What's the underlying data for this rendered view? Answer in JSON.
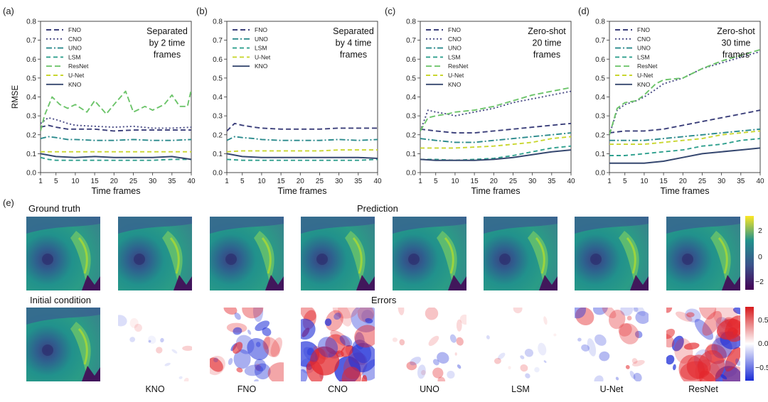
{
  "panel_tags": [
    "(a)",
    "(b)",
    "(c)",
    "(d)",
    "(e)"
  ],
  "chart_data": [
    {
      "type": "line",
      "tag": "(a)",
      "note": "Separated\nby 2 time\nframes",
      "xlabel": "Time frames",
      "ylabel": "RMSE",
      "xlim": [
        1,
        40
      ],
      "ylim": [
        0,
        0.8
      ],
      "xticks": [
        1,
        5,
        10,
        15,
        20,
        25,
        30,
        35,
        40
      ],
      "yticks": [
        0,
        0.1,
        0.2,
        0.3,
        0.4,
        0.5,
        0.6,
        0.7,
        0.8
      ],
      "legend_position": "upper-left",
      "series": [
        {
          "name": "FNO",
          "color": "#3b3f7a",
          "dash": "7,4",
          "x": [
            1,
            3,
            5,
            8,
            10,
            15,
            20,
            25,
            30,
            35,
            40
          ],
          "values": [
            0.24,
            0.25,
            0.24,
            0.23,
            0.23,
            0.23,
            0.22,
            0.225,
            0.225,
            0.225,
            0.225
          ]
        },
        {
          "name": "CNO",
          "color": "#4a4c86",
          "dash": "2,3",
          "x": [
            1,
            3,
            5,
            8,
            10,
            15,
            20,
            25,
            30,
            35,
            40
          ],
          "values": [
            0.26,
            0.29,
            0.28,
            0.26,
            0.25,
            0.245,
            0.24,
            0.245,
            0.235,
            0.235,
            0.24
          ]
        },
        {
          "name": "UNO",
          "color": "#2a8a8c",
          "dash": "8,3,2,3",
          "x": [
            1,
            3,
            5,
            8,
            10,
            15,
            20,
            25,
            30,
            35,
            40
          ],
          "values": [
            0.18,
            0.19,
            0.185,
            0.175,
            0.175,
            0.17,
            0.17,
            0.175,
            0.17,
            0.17,
            0.175
          ]
        },
        {
          "name": "LSM",
          "color": "#2fa08e",
          "dash": "6,4",
          "x": [
            1,
            3,
            5,
            8,
            10,
            15,
            20,
            25,
            30,
            35,
            40
          ],
          "values": [
            0.08,
            0.07,
            0.065,
            0.065,
            0.065,
            0.065,
            0.065,
            0.065,
            0.065,
            0.07,
            0.07
          ]
        },
        {
          "name": "ResNet",
          "color": "#6cc46a",
          "dash": "8,4",
          "x": [
            1,
            2,
            4,
            6,
            8,
            10,
            13,
            15,
            18,
            20,
            23,
            25,
            28,
            30,
            33,
            35,
            37,
            39,
            40
          ],
          "values": [
            0.22,
            0.3,
            0.4,
            0.36,
            0.34,
            0.36,
            0.32,
            0.38,
            0.31,
            0.36,
            0.43,
            0.32,
            0.35,
            0.33,
            0.36,
            0.41,
            0.35,
            0.35,
            0.44
          ]
        },
        {
          "name": "U-Net",
          "color": "#c9d630",
          "dash": "6,4",
          "x": [
            1,
            5,
            10,
            15,
            20,
            25,
            30,
            35,
            40
          ],
          "values": [
            0.11,
            0.11,
            0.11,
            0.11,
            0.11,
            0.11,
            0.11,
            0.11,
            0.11
          ]
        },
        {
          "name": "KNO",
          "color": "#35476f",
          "dash": "",
          "x": [
            1,
            5,
            10,
            15,
            20,
            25,
            30,
            35,
            40
          ],
          "values": [
            0.1,
            0.085,
            0.08,
            0.085,
            0.08,
            0.08,
            0.08,
            0.085,
            0.07
          ]
        }
      ]
    },
    {
      "type": "line",
      "tag": "(b)",
      "note": "Separated\nby 4 time\nframes",
      "xlabel": "Time frames",
      "ylabel": "",
      "xlim": [
        1,
        40
      ],
      "ylim": [
        0,
        0.8
      ],
      "xticks": [
        1,
        5,
        10,
        15,
        20,
        25,
        30,
        35,
        40
      ],
      "yticks": [
        0,
        0.1,
        0.2,
        0.3,
        0.4,
        0.5,
        0.6,
        0.7,
        0.8
      ],
      "legend_position": "upper-left",
      "series": [
        {
          "name": "FNO",
          "color": "#3b3f7a",
          "dash": "7,4",
          "x": [
            1,
            3,
            5,
            8,
            10,
            15,
            20,
            25,
            30,
            35,
            40
          ],
          "values": [
            0.22,
            0.26,
            0.25,
            0.24,
            0.235,
            0.23,
            0.23,
            0.23,
            0.235,
            0.235,
            0.235
          ]
        },
        {
          "name": "UNO",
          "color": "#2a8a8c",
          "dash": "8,3,2,3",
          "x": [
            1,
            3,
            5,
            8,
            10,
            15,
            20,
            25,
            30,
            35,
            40
          ],
          "values": [
            0.17,
            0.19,
            0.185,
            0.18,
            0.175,
            0.17,
            0.17,
            0.17,
            0.175,
            0.17,
            0.175
          ]
        },
        {
          "name": "LSM",
          "color": "#2fa08e",
          "dash": "6,4",
          "x": [
            1,
            5,
            10,
            15,
            20,
            25,
            30,
            35,
            40
          ],
          "values": [
            0.07,
            0.065,
            0.065,
            0.065,
            0.065,
            0.065,
            0.065,
            0.065,
            0.07
          ]
        },
        {
          "name": "U-Net",
          "color": "#c9d630",
          "dash": "6,4",
          "x": [
            1,
            5,
            10,
            15,
            20,
            25,
            30,
            35,
            40
          ],
          "values": [
            0.11,
            0.115,
            0.115,
            0.115,
            0.115,
            0.115,
            0.12,
            0.12,
            0.12
          ]
        },
        {
          "name": "KNO",
          "color": "#35476f",
          "dash": "",
          "x": [
            1,
            5,
            10,
            15,
            20,
            25,
            30,
            35,
            40
          ],
          "values": [
            0.1,
            0.085,
            0.08,
            0.08,
            0.08,
            0.08,
            0.08,
            0.08,
            0.075
          ]
        }
      ]
    },
    {
      "type": "line",
      "tag": "(c)",
      "note": "Zero-shot\n20 time\nframes",
      "xlabel": "Time frames",
      "ylabel": "",
      "xlim": [
        1,
        40
      ],
      "ylim": [
        0,
        0.8
      ],
      "xticks": [
        1,
        5,
        10,
        15,
        20,
        25,
        30,
        35,
        40
      ],
      "yticks": [
        0,
        0.1,
        0.2,
        0.3,
        0.4,
        0.5,
        0.6,
        0.7,
        0.8
      ],
      "legend_position": "upper-left",
      "series": [
        {
          "name": "FNO",
          "color": "#3b3f7a",
          "dash": "7,4",
          "x": [
            1,
            5,
            10,
            15,
            20,
            25,
            30,
            35,
            40
          ],
          "values": [
            0.23,
            0.22,
            0.21,
            0.21,
            0.22,
            0.23,
            0.24,
            0.25,
            0.26
          ]
        },
        {
          "name": "CNO",
          "color": "#4a4c86",
          "dash": "2,3",
          "x": [
            1,
            3,
            5,
            8,
            10,
            15,
            20,
            25,
            30,
            35,
            40
          ],
          "values": [
            0.22,
            0.33,
            0.32,
            0.31,
            0.3,
            0.32,
            0.34,
            0.37,
            0.39,
            0.41,
            0.43
          ]
        },
        {
          "name": "UNO",
          "color": "#2a8a8c",
          "dash": "8,3,2,3",
          "x": [
            1,
            5,
            10,
            15,
            20,
            25,
            30,
            35,
            40
          ],
          "values": [
            0.18,
            0.17,
            0.16,
            0.16,
            0.17,
            0.18,
            0.19,
            0.2,
            0.21
          ]
        },
        {
          "name": "LSM",
          "color": "#2fa08e",
          "dash": "6,4",
          "x": [
            1,
            5,
            10,
            15,
            20,
            25,
            30,
            35,
            40
          ],
          "values": [
            0.07,
            0.07,
            0.065,
            0.07,
            0.075,
            0.09,
            0.11,
            0.13,
            0.14
          ]
        },
        {
          "name": "ResNet",
          "color": "#6cc46a",
          "dash": "8,4",
          "x": [
            1,
            3,
            5,
            8,
            10,
            15,
            20,
            25,
            30,
            35,
            40
          ],
          "values": [
            0.22,
            0.29,
            0.3,
            0.31,
            0.32,
            0.33,
            0.35,
            0.38,
            0.41,
            0.43,
            0.45
          ]
        },
        {
          "name": "U-Net",
          "color": "#c9d630",
          "dash": "6,4",
          "x": [
            1,
            5,
            10,
            15,
            20,
            25,
            30,
            35,
            40
          ],
          "values": [
            0.13,
            0.13,
            0.13,
            0.135,
            0.14,
            0.15,
            0.16,
            0.18,
            0.19
          ]
        },
        {
          "name": "KNO",
          "color": "#35476f",
          "dash": "",
          "x": [
            1,
            5,
            10,
            15,
            20,
            25,
            30,
            35,
            40
          ],
          "values": [
            0.07,
            0.065,
            0.065,
            0.065,
            0.07,
            0.08,
            0.095,
            0.11,
            0.12
          ]
        }
      ]
    },
    {
      "type": "line",
      "tag": "(d)",
      "note": "Zero-shot\n30 time\nframes",
      "xlabel": "Time frames",
      "ylabel": "",
      "xlim": [
        1,
        40
      ],
      "ylim": [
        0,
        0.8
      ],
      "xticks": [
        1,
        5,
        10,
        15,
        20,
        25,
        30,
        35,
        40
      ],
      "yticks": [
        0,
        0.1,
        0.2,
        0.3,
        0.4,
        0.5,
        0.6,
        0.7,
        0.8
      ],
      "legend_position": "upper-left",
      "series": [
        {
          "name": "FNO",
          "color": "#3b3f7a",
          "dash": "7,4",
          "x": [
            1,
            5,
            10,
            15,
            20,
            25,
            30,
            35,
            40
          ],
          "values": [
            0.21,
            0.22,
            0.22,
            0.23,
            0.25,
            0.27,
            0.29,
            0.31,
            0.33
          ]
        },
        {
          "name": "CNO",
          "color": "#4a4c86",
          "dash": "2,3",
          "x": [
            1,
            3,
            5,
            8,
            10,
            13,
            15,
            20,
            25,
            30,
            35,
            40
          ],
          "values": [
            0.2,
            0.33,
            0.36,
            0.38,
            0.4,
            0.44,
            0.47,
            0.5,
            0.55,
            0.58,
            0.61,
            0.64
          ]
        },
        {
          "name": "UNO",
          "color": "#2a8a8c",
          "dash": "8,3,2,3",
          "x": [
            1,
            5,
            10,
            15,
            20,
            25,
            30,
            35,
            40
          ],
          "values": [
            0.17,
            0.17,
            0.17,
            0.18,
            0.19,
            0.2,
            0.21,
            0.22,
            0.23
          ]
        },
        {
          "name": "LSM",
          "color": "#2fa08e",
          "dash": "6,4",
          "x": [
            1,
            5,
            10,
            15,
            20,
            25,
            30,
            35,
            40
          ],
          "values": [
            0.09,
            0.09,
            0.1,
            0.11,
            0.12,
            0.14,
            0.15,
            0.17,
            0.18
          ]
        },
        {
          "name": "ResNet",
          "color": "#6cc46a",
          "dash": "8,4",
          "x": [
            1,
            3,
            5,
            8,
            10,
            13,
            15,
            20,
            25,
            30,
            35,
            40
          ],
          "values": [
            0.2,
            0.34,
            0.37,
            0.38,
            0.41,
            0.47,
            0.49,
            0.5,
            0.55,
            0.59,
            0.62,
            0.65
          ]
        },
        {
          "name": "U-Net",
          "color": "#c9d630",
          "dash": "6,4",
          "x": [
            1,
            5,
            10,
            15,
            20,
            25,
            30,
            35,
            40
          ],
          "values": [
            0.15,
            0.15,
            0.15,
            0.16,
            0.17,
            0.18,
            0.2,
            0.21,
            0.22
          ]
        },
        {
          "name": "KNO",
          "color": "#35476f",
          "dash": "",
          "x": [
            1,
            5,
            10,
            15,
            20,
            25,
            30,
            35,
            40
          ],
          "values": [
            0.05,
            0.05,
            0.05,
            0.06,
            0.08,
            0.1,
            0.11,
            0.12,
            0.13
          ]
        }
      ]
    }
  ],
  "panel_e": {
    "tag": "(e)",
    "ground_truth_label": "Ground truth",
    "initial_condition_label": "Initial condition",
    "prediction_label": "Prediction",
    "errors_label": "Errors",
    "models": [
      "KNO",
      "FNO",
      "CNO",
      "UNO",
      "LSM",
      "U-Net",
      "ResNet"
    ],
    "error_intensity": [
      0.08,
      0.55,
      0.95,
      0.3,
      0.12,
      0.45,
      1.0
    ],
    "prediction_colorbar": {
      "ticks": [
        "2",
        "0",
        "−2"
      ],
      "colors": [
        "#fde725",
        "#21918c",
        "#3b528b",
        "#440154"
      ]
    },
    "error_colorbar": {
      "ticks": [
        "0.5",
        "0.0",
        "−0.5"
      ],
      "colors": [
        "#d7191c",
        "#ffffff",
        "#1a2bd6"
      ]
    }
  }
}
